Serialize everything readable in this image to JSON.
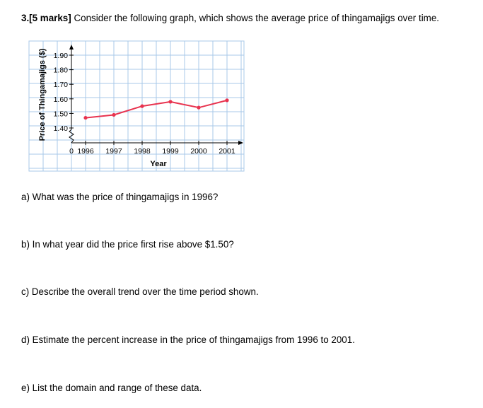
{
  "question": {
    "number": "3.",
    "marks": "[5 marks]",
    "text": "Consider the following graph, which shows the average price of thingamajigs over time."
  },
  "chart_data": {
    "type": "line",
    "title": "",
    "xlabel": "Year",
    "ylabel": "Price of Thingamajigs ($)",
    "origin_label": "0",
    "x": [
      "1996",
      "1997",
      "1998",
      "1999",
      "2000",
      "2001"
    ],
    "y_ticks": [
      "1.40",
      "1.50",
      "1.60",
      "1.70",
      "1.80",
      "1.90"
    ],
    "ylim": [
      1.4,
      1.9
    ],
    "axis_break": true,
    "grid": true,
    "series": [
      {
        "values": [
          1.47,
          1.49,
          1.55,
          1.58,
          1.54,
          1.59
        ]
      }
    ],
    "colors": {
      "line": "#e8334f",
      "grid": "#a9c8e8",
      "axis": "#000000"
    }
  },
  "subquestions": [
    {
      "text": "a) What was the price of thingamajigs in 1996?"
    },
    {
      "text": "b) In what year did the price first rise above $1.50?"
    },
    {
      "text": "c) Describe the overall trend over the time period shown."
    },
    {
      "text": "d) Estimate the percent increase in the price of thingamajigs from 1996 to 2001."
    },
    {
      "text": "e) List the domain and range of these data."
    }
  ]
}
